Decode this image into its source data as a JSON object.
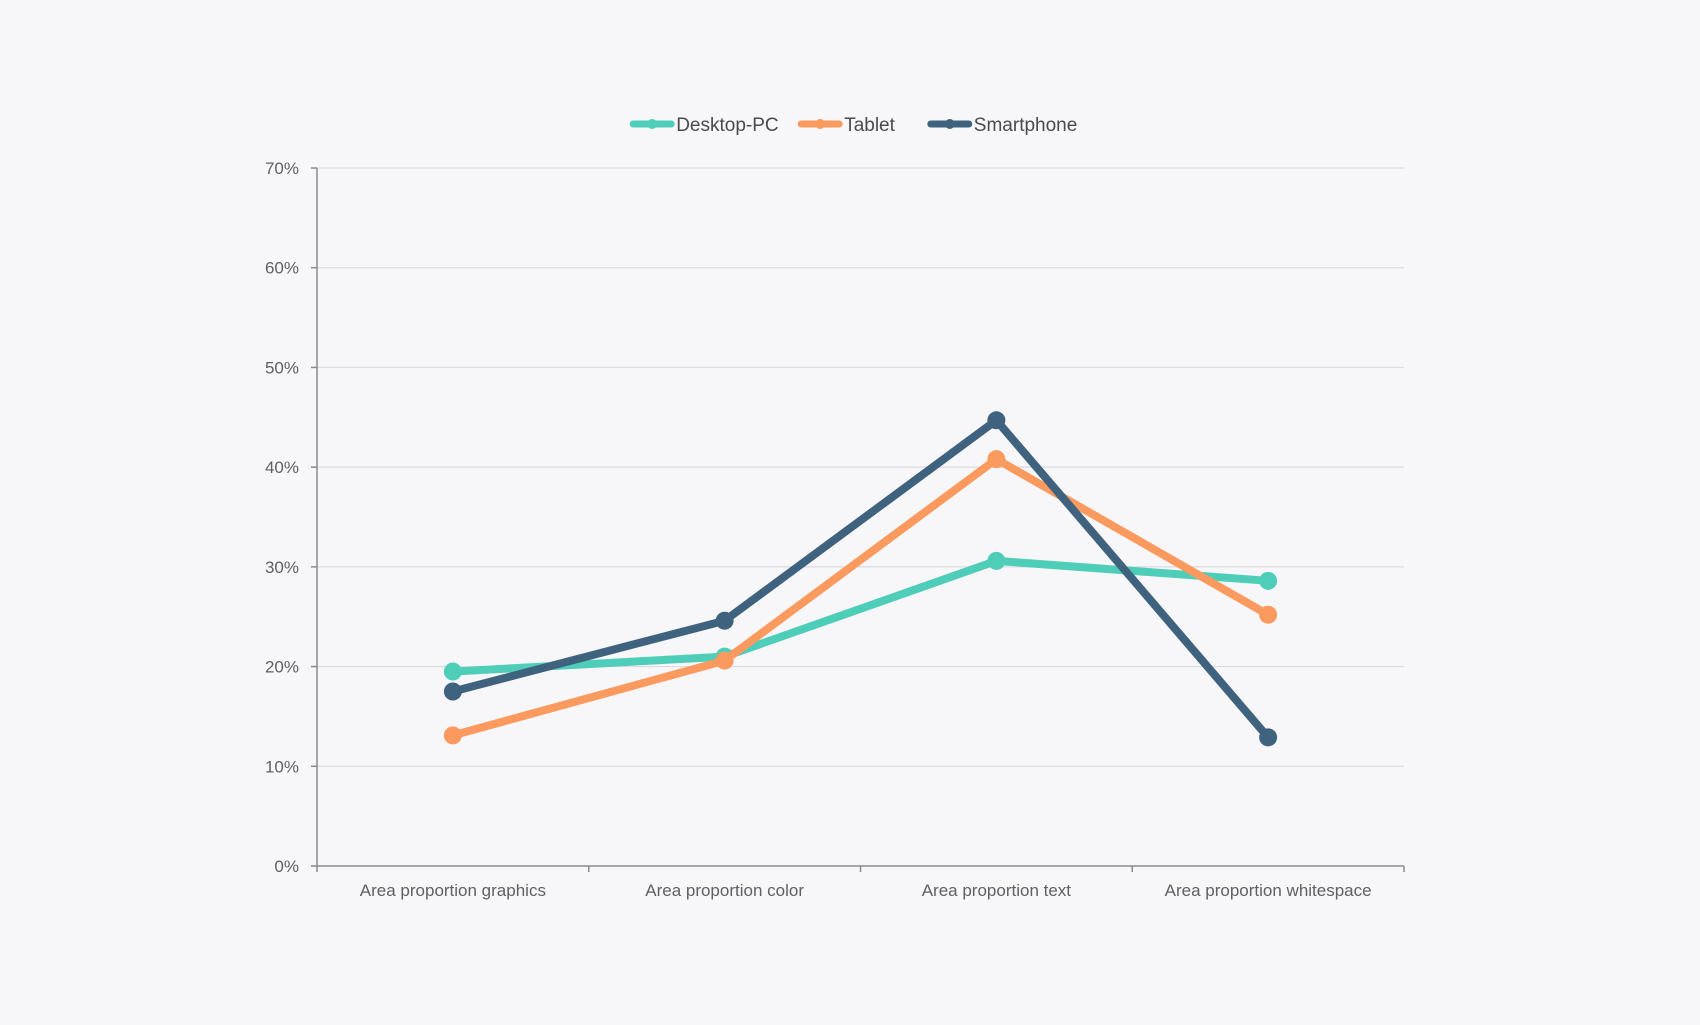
{
  "chart_data": {
    "type": "line",
    "title": "",
    "xlabel": "",
    "ylabel": "",
    "categories": [
      "Area proportion graphics",
      "Area proportion color",
      "Area proportion text",
      "Area proportion whitespace"
    ],
    "series": [
      {
        "name": "Desktop-PC",
        "color": "#4ecdb9",
        "values": [
          19.5,
          21.0,
          30.6,
          28.6
        ]
      },
      {
        "name": "Tablet",
        "color": "#fa9a5f",
        "values": [
          13.1,
          20.6,
          40.8,
          25.2
        ]
      },
      {
        "name": "Smartphone",
        "color": "#3f637e",
        "values": [
          17.5,
          24.6,
          44.7,
          12.9
        ]
      }
    ],
    "ylim": [
      0,
      70
    ],
    "yticks": [
      0,
      10,
      20,
      30,
      40,
      50,
      60,
      70
    ],
    "ytick_labels": [
      "0%",
      "10%",
      "20%",
      "30%",
      "40%",
      "50%",
      "60%",
      "70%"
    ],
    "grid": true,
    "legend_position": "top-center"
  }
}
